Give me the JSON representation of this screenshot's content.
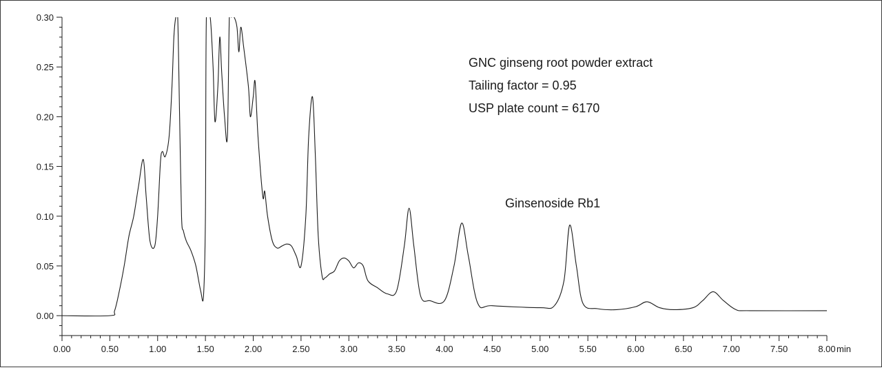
{
  "chart_data": {
    "type": "line",
    "title": "",
    "xlabel": "",
    "x_unit": "min",
    "ylabel": "",
    "xlim": [
      0,
      8
    ],
    "ylim": [
      -0.02,
      0.3
    ],
    "grid": false,
    "x_ticks": [
      "0.00",
      "0.50",
      "1.00",
      "1.50",
      "2.00",
      "2.50",
      "3.00",
      "3.50",
      "4.00",
      "4.50",
      "5.00",
      "5.50",
      "6.00",
      "6.50",
      "7.00",
      "7.50",
      "8.00"
    ],
    "y_ticks": [
      "0.00",
      "0.05",
      "0.10",
      "0.15",
      "0.20",
      "0.25",
      "0.30"
    ],
    "annotations": {
      "sample": "GNC ginseng root powder extract",
      "tailing": "Tailing factor = 0.95",
      "plates": "USP plate count = 6170",
      "peak_label": "Ginsenoside Rb1"
    },
    "series": [
      {
        "name": "",
        "color": "#1a1a1a",
        "x": [
          0.0,
          0.5,
          0.55,
          0.6,
          0.65,
          0.7,
          0.75,
          0.8,
          0.85,
          0.88,
          0.92,
          0.97,
          1.0,
          1.03,
          1.05,
          1.08,
          1.12,
          1.15,
          1.17,
          1.19,
          1.21,
          1.23,
          1.25,
          1.27,
          1.3,
          1.35,
          1.4,
          1.45,
          1.48,
          1.5,
          1.51,
          1.55,
          1.58,
          1.6,
          1.63,
          1.65,
          1.67,
          1.7,
          1.73,
          1.75,
          1.77,
          1.8,
          1.83,
          1.85,
          1.87,
          1.9,
          1.95,
          1.97,
          2.0,
          2.02,
          2.05,
          2.1,
          2.12,
          2.15,
          2.2,
          2.25,
          2.3,
          2.35,
          2.4,
          2.45,
          2.5,
          2.55,
          2.58,
          2.62,
          2.65,
          2.68,
          2.72,
          2.75,
          2.8,
          2.85,
          2.9,
          2.95,
          3.0,
          3.05,
          3.1,
          3.15,
          3.2,
          3.3,
          3.4,
          3.5,
          3.58,
          3.63,
          3.68,
          3.75,
          3.85,
          4.0,
          4.1,
          4.18,
          4.25,
          4.35,
          4.5,
          5.0,
          5.15,
          5.25,
          5.31,
          5.38,
          5.45,
          5.6,
          5.8,
          6.0,
          6.12,
          6.25,
          6.4,
          6.6,
          6.7,
          6.81,
          6.92,
          7.05,
          7.2,
          8.0
        ],
        "y": [
          0.0,
          0.0,
          0.005,
          0.025,
          0.05,
          0.08,
          0.1,
          0.13,
          0.157,
          0.12,
          0.075,
          0.07,
          0.1,
          0.155,
          0.165,
          0.16,
          0.18,
          0.23,
          0.28,
          0.3,
          0.3,
          0.2,
          0.1,
          0.085,
          0.075,
          0.065,
          0.05,
          0.025,
          0.02,
          0.1,
          0.3,
          0.3,
          0.25,
          0.195,
          0.23,
          0.28,
          0.245,
          0.2,
          0.18,
          0.3,
          0.3,
          0.3,
          0.29,
          0.265,
          0.29,
          0.27,
          0.23,
          0.2,
          0.22,
          0.235,
          0.18,
          0.12,
          0.125,
          0.1,
          0.075,
          0.068,
          0.07,
          0.072,
          0.07,
          0.06,
          0.05,
          0.1,
          0.18,
          0.22,
          0.16,
          0.08,
          0.04,
          0.038,
          0.042,
          0.045,
          0.055,
          0.058,
          0.055,
          0.048,
          0.053,
          0.05,
          0.035,
          0.028,
          0.022,
          0.025,
          0.07,
          0.108,
          0.07,
          0.02,
          0.015,
          0.015,
          0.05,
          0.093,
          0.06,
          0.012,
          0.01,
          0.008,
          0.01,
          0.035,
          0.091,
          0.05,
          0.012,
          0.007,
          0.006,
          0.009,
          0.014,
          0.008,
          0.006,
          0.008,
          0.015,
          0.024,
          0.015,
          0.006,
          0.005,
          0.005
        ]
      }
    ]
  }
}
